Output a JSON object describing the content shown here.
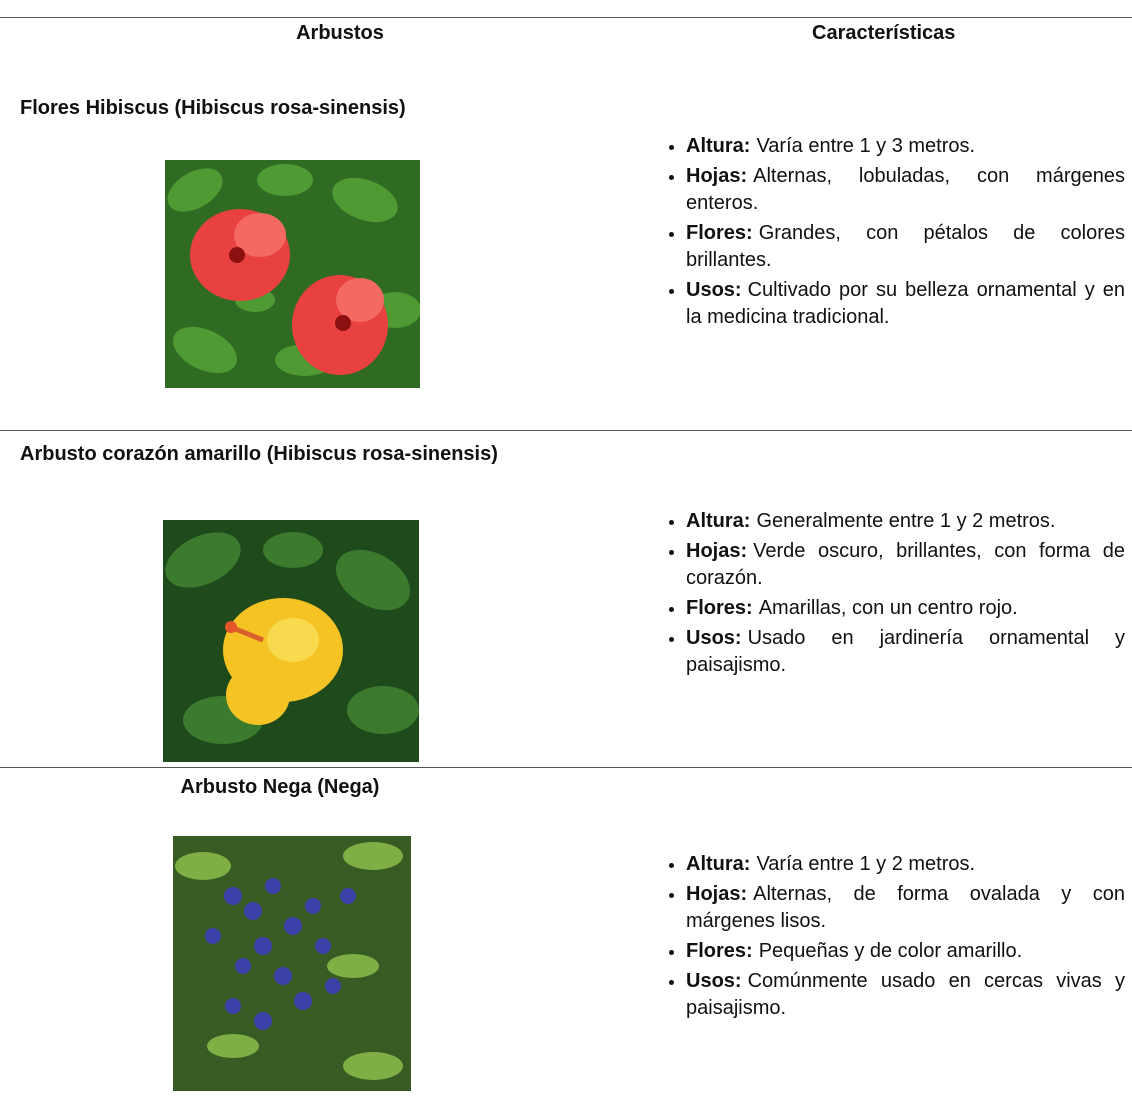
{
  "table": {
    "headers": [
      "Arbustos",
      "Características"
    ],
    "rows": [
      {
        "name": "Flores Hibiscus (Hibiscus rosa-sinensis)",
        "items": [
          {
            "label": "Altura:",
            "text": "Varía entre 1 y 3 metros."
          },
          {
            "label": "Hojas:",
            "text": "Alternas, lobuladas, con márgenes enteros."
          },
          {
            "label": "Flores:",
            "text": "Grandes, con pétalos de colores brillantes."
          },
          {
            "label": "Usos:",
            "text": "Cultivado por su belleza ornamental y en la medicina tradicional."
          }
        ]
      },
      {
        "name": "Arbusto corazón amarillo (Hibiscus rosa-sinensis)",
        "items": [
          {
            "label": "Altura:",
            "text": "Generalmente entre 1 y 2 metros."
          },
          {
            "label": "Hojas:",
            "text": "Verde oscuro, brillantes, con forma de corazón."
          },
          {
            "label": "Flores:",
            "text": "Amarillas, con un centro rojo."
          },
          {
            "label": "Usos:",
            "text": "Usado en jardinería ornamental y paisajismo."
          }
        ]
      },
      {
        "name": "Arbusto Nega (Nega)",
        "items": [
          {
            "label": "Altura:",
            "text": "Varía entre 1 y 2 metros."
          },
          {
            "label": "Hojas:",
            "text": "Alternas, de forma ovalada y con márgenes lisos."
          },
          {
            "label": "Flores:",
            "text": "Pequeñas y de color amarillo."
          },
          {
            "label": "Usos:",
            "text": "Comúnmente usado en cercas vivas y paisajismo."
          }
        ]
      }
    ]
  }
}
